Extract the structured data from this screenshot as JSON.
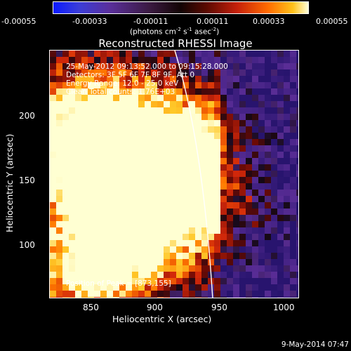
{
  "colorbar": {
    "ticks": [
      "-0.00055",
      "-0.00033",
      "-0.00011",
      "0.00011",
      "0.00033",
      "0.00055"
    ],
    "units_main": "(photons cm",
    "units_sup1": "-2",
    "units_mid": " s",
    "units_sup2": "-1",
    "units_mid2": " asec",
    "units_sup3": "-2",
    "units_end": ")"
  },
  "title": "Reconstructed RHESSI Image",
  "info": {
    "time": "25-May-2012 09:13:52.000 to 09:15:28.000",
    "detectors": "Detectors: 3F 5F 6F 7F 8F 9F, Att 0",
    "energy": "Energy Range: 12.0 - 25.0 keV",
    "clean": "Clean     Total counts: 1.76E+03",
    "peak": "Position of Peak = [873,155]"
  },
  "axes": {
    "xlabel": "Heliocentric X (arcsec)",
    "ylabel": "Heliocentric Y (arcsec)",
    "xticks": [
      "850",
      "900",
      "950",
      "1000"
    ],
    "yticks": [
      "200",
      "150",
      "100"
    ]
  },
  "timestamp": "9-May-2014 07:47",
  "colors": {
    "background": "#000000",
    "limb": "#ffffff",
    "hot": "#ffe870",
    "cool": "#3a1870"
  }
}
